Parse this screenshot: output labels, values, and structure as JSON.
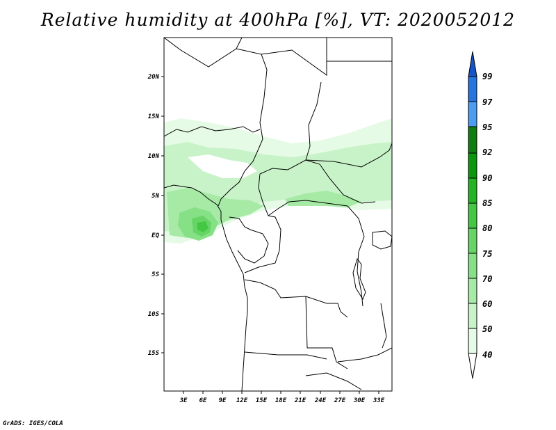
{
  "title": "Relative humidity at 400hPa [%], VT: 2020052012",
  "credit": "GrADS: IGES/COLA",
  "map": {
    "lat_labels": [
      "20N",
      "15N",
      "10N",
      "5N",
      "EQ",
      "5S",
      "10S",
      "15S"
    ],
    "lon_labels": [
      "3E",
      "6E",
      "9E",
      "12E",
      "15E",
      "18E",
      "21E",
      "24E",
      "27E",
      "30E",
      "33E"
    ]
  },
  "colorbar": {
    "levels": [
      "40",
      "50",
      "60",
      "70",
      "75",
      "80",
      "85",
      "90",
      "92",
      "95",
      "97",
      "99"
    ],
    "colors": [
      "#ffffff",
      "#e6fbe6",
      "#c8f3c8",
      "#a6eaa6",
      "#86e086",
      "#66d566",
      "#44c844",
      "#22b422",
      "#0b970b",
      "#0f7d0f",
      "#4a9df0",
      "#2475df",
      "#1554c8"
    ]
  },
  "chart_data": {
    "type": "heatmap",
    "title": "Relative humidity at 400hPa [%], VT: 2020052012",
    "variable": "Relative humidity at 400hPa",
    "unit": "%",
    "valid_time": "2020052012",
    "lon_range": [
      0,
      35
    ],
    "lat_range": [
      -20,
      25
    ],
    "contour_levels": [
      40,
      50,
      60,
      70,
      75,
      80,
      85,
      90,
      92,
      95,
      97,
      99
    ],
    "features": [
      {
        "region": "band ~2N-14N across 0E-35E",
        "rh_range": [
          40,
          60
        ]
      },
      {
        "region": "Gulf of Guinea / Cameroon coast ~0-5N, 0E-10E",
        "rh_range": [
          50,
          75
        ]
      },
      {
        "region": "maximum near 6E, 1N",
        "rh_range": [
          75,
          85
        ]
      }
    ]
  }
}
